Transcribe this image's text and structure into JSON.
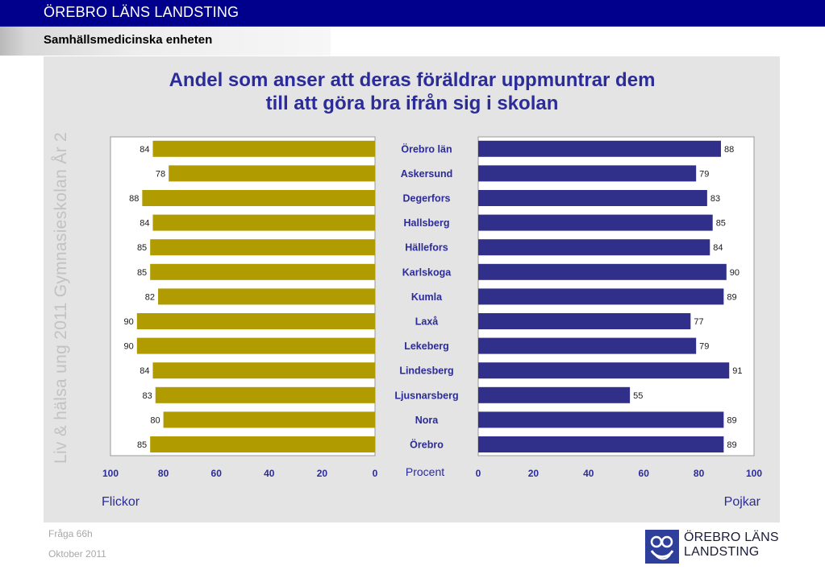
{
  "header": {
    "organization": "ÖREBRO LÄNS LANDSTING"
  },
  "subheader": {
    "unit": "Samhällsmedicinska enheten"
  },
  "side_label": "Liv & hälsa ung 2011 Gymnasieskolan År 2",
  "footer": {
    "question": "Fråga 66h",
    "date": "Oktober 2011"
  },
  "logo": {
    "line1": "ÖREBRO LÄNS",
    "line2": "LANDSTING",
    "icon": "landsting-emblem-icon"
  },
  "colors": {
    "girls_bar": "#b09b00",
    "boys_bar": "#30308a",
    "title": "#2b2b99",
    "header": "#00008c"
  },
  "chart_data": {
    "type": "bar",
    "title_lines": [
      "Andel som anser att deras föräldrar uppmuntrar dem",
      "till att göra bra ifrån sig i skolan"
    ],
    "categories": [
      "Örebro län",
      "Askersund",
      "Degerfors",
      "Hallsberg",
      "Hällefors",
      "Karlskoga",
      "Kumla",
      "Laxå",
      "Lekeberg",
      "Lindesberg",
      "Ljusnarsberg",
      "Nora",
      "Örebro"
    ],
    "series": [
      {
        "name": "Flickor",
        "values": [
          84,
          78,
          88,
          84,
          85,
          85,
          82,
          90,
          90,
          84,
          83,
          80,
          85
        ]
      },
      {
        "name": "Pojkar",
        "values": [
          88,
          79,
          83,
          85,
          84,
          90,
          89,
          77,
          79,
          91,
          55,
          89,
          89
        ]
      }
    ],
    "xlabel": "Procent",
    "xlim": [
      0,
      100
    ],
    "left_ticks": [
      "100",
      "80",
      "60",
      "40",
      "20",
      "0"
    ],
    "right_ticks": [
      "0",
      "20",
      "40",
      "60",
      "80",
      "100"
    ],
    "grid": false
  }
}
